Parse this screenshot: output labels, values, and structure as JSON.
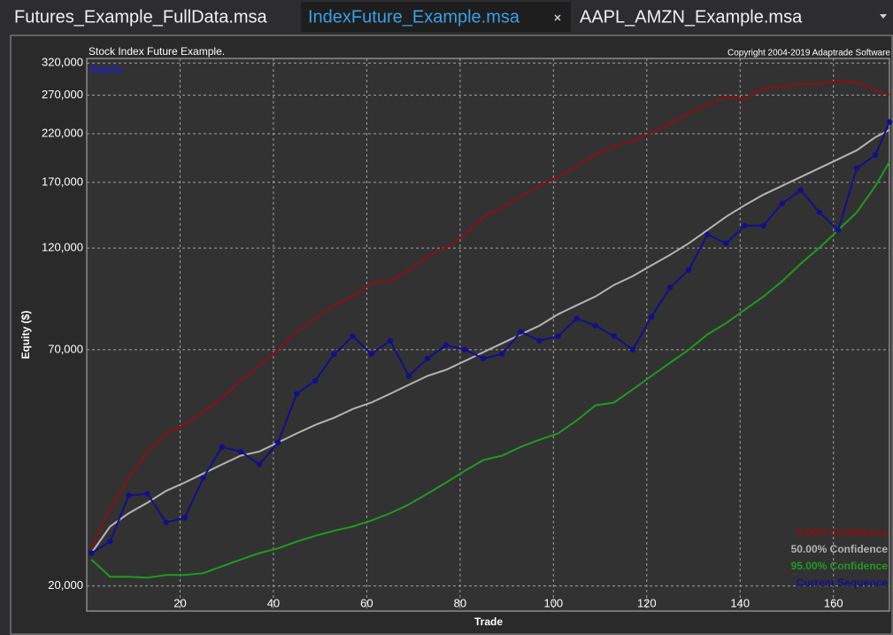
{
  "tabs": [
    "Futures_Example_FullData.msa",
    "IndexFuture_Example.msa",
    "AAPL_AMZN_Example.msa"
  ],
  "chart_data": {
    "type": "line",
    "title": "Stock Index Future Example.",
    "subtitle": "Copyright 2004-2019 Adaptrade Software",
    "annotation": "Equity",
    "x_label": "Trade",
    "y_label": "Equity ($)",
    "log_y": true,
    "grid": true,
    "legend": "bottom-right",
    "xlim": [
      0,
      172
    ],
    "ylim": [
      17500,
      328000
    ],
    "xticks": [
      20,
      40,
      60,
      80,
      100,
      120,
      140,
      160
    ],
    "yticks": [
      {
        "value": 20000,
        "label": "20,000"
      },
      {
        "value": 70000,
        "label": "70,000"
      },
      {
        "value": 120000,
        "label": "120,000"
      },
      {
        "value": 170000,
        "label": "170,000"
      },
      {
        "value": 220000,
        "label": "220,000"
      },
      {
        "value": 270000,
        "label": "270,000"
      },
      {
        "value": 320000,
        "label": "320,000"
      }
    ],
    "x": [
      1,
      5,
      9,
      13,
      17,
      21,
      25,
      29,
      33,
      37,
      41,
      45,
      49,
      53,
      57,
      61,
      65,
      69,
      73,
      77,
      81,
      85,
      89,
      93,
      97,
      101,
      105,
      109,
      113,
      117,
      121,
      125,
      129,
      133,
      137,
      141,
      145,
      149,
      153,
      157,
      161,
      165,
      169,
      172
    ],
    "series": [
      {
        "name": "5.00% Confidence",
        "color": "#8b1010",
        "values": [
          24400,
          30100,
          35500,
          40800,
          44900,
          47000,
          50400,
          54100,
          59400,
          64400,
          70000,
          77000,
          82600,
          88600,
          92800,
          99600,
          100600,
          106900,
          114700,
          120200,
          128900,
          141700,
          148500,
          157800,
          166900,
          175000,
          185100,
          196700,
          206200,
          211200,
          221300,
          231900,
          245400,
          257200,
          267100,
          264500,
          279700,
          282500,
          286500,
          286500,
          290600,
          289200,
          277200,
          270800
        ]
      },
      {
        "name": "50.00% Confidence",
        "color": "#b4b4b4",
        "values": [
          23800,
          27400,
          29400,
          31100,
          33100,
          34600,
          36300,
          38100,
          39900,
          40800,
          42800,
          44900,
          47000,
          48800,
          51100,
          52900,
          55400,
          58100,
          60900,
          62900,
          65900,
          69100,
          72400,
          75900,
          79500,
          84500,
          88600,
          92800,
          98700,
          103400,
          109500,
          115800,
          123100,
          132000,
          141700,
          150600,
          159300,
          166900,
          175000,
          183400,
          192200,
          201500,
          216100,
          224500
        ]
      },
      {
        "name": "95.00% Confidence",
        "color": "#1e9b1e",
        "values": [
          23000,
          21000,
          21000,
          20900,
          21200,
          21200,
          21400,
          22200,
          23000,
          23800,
          24400,
          25300,
          26100,
          26800,
          27400,
          28300,
          29400,
          30800,
          32600,
          34600,
          36800,
          39000,
          39900,
          41800,
          43400,
          44900,
          48100,
          52100,
          52900,
          56700,
          60900,
          65300,
          70000,
          75900,
          80600,
          86500,
          92800,
          100600,
          110500,
          120200,
          132000,
          145000,
          166900,
          189600
        ]
      },
      {
        "name": "Current Sequence",
        "color": "#10108c",
        "markers": true,
        "values": [
          23800,
          25300,
          32300,
          32600,
          28000,
          28700,
          35500,
          41800,
          40800,
          38100,
          42800,
          55400,
          59400,
          68400,
          75200,
          68400,
          73400,
          60900,
          66800,
          71700,
          70000,
          66800,
          68400,
          77000,
          73400,
          75200,
          82600,
          79500,
          75200,
          70000,
          83300,
          97300,
          106900,
          128900,
          123100,
          135200,
          135200,
          152000,
          163200,
          145000,
          132000,
          183400,
          196700,
          234200
        ]
      }
    ]
  }
}
